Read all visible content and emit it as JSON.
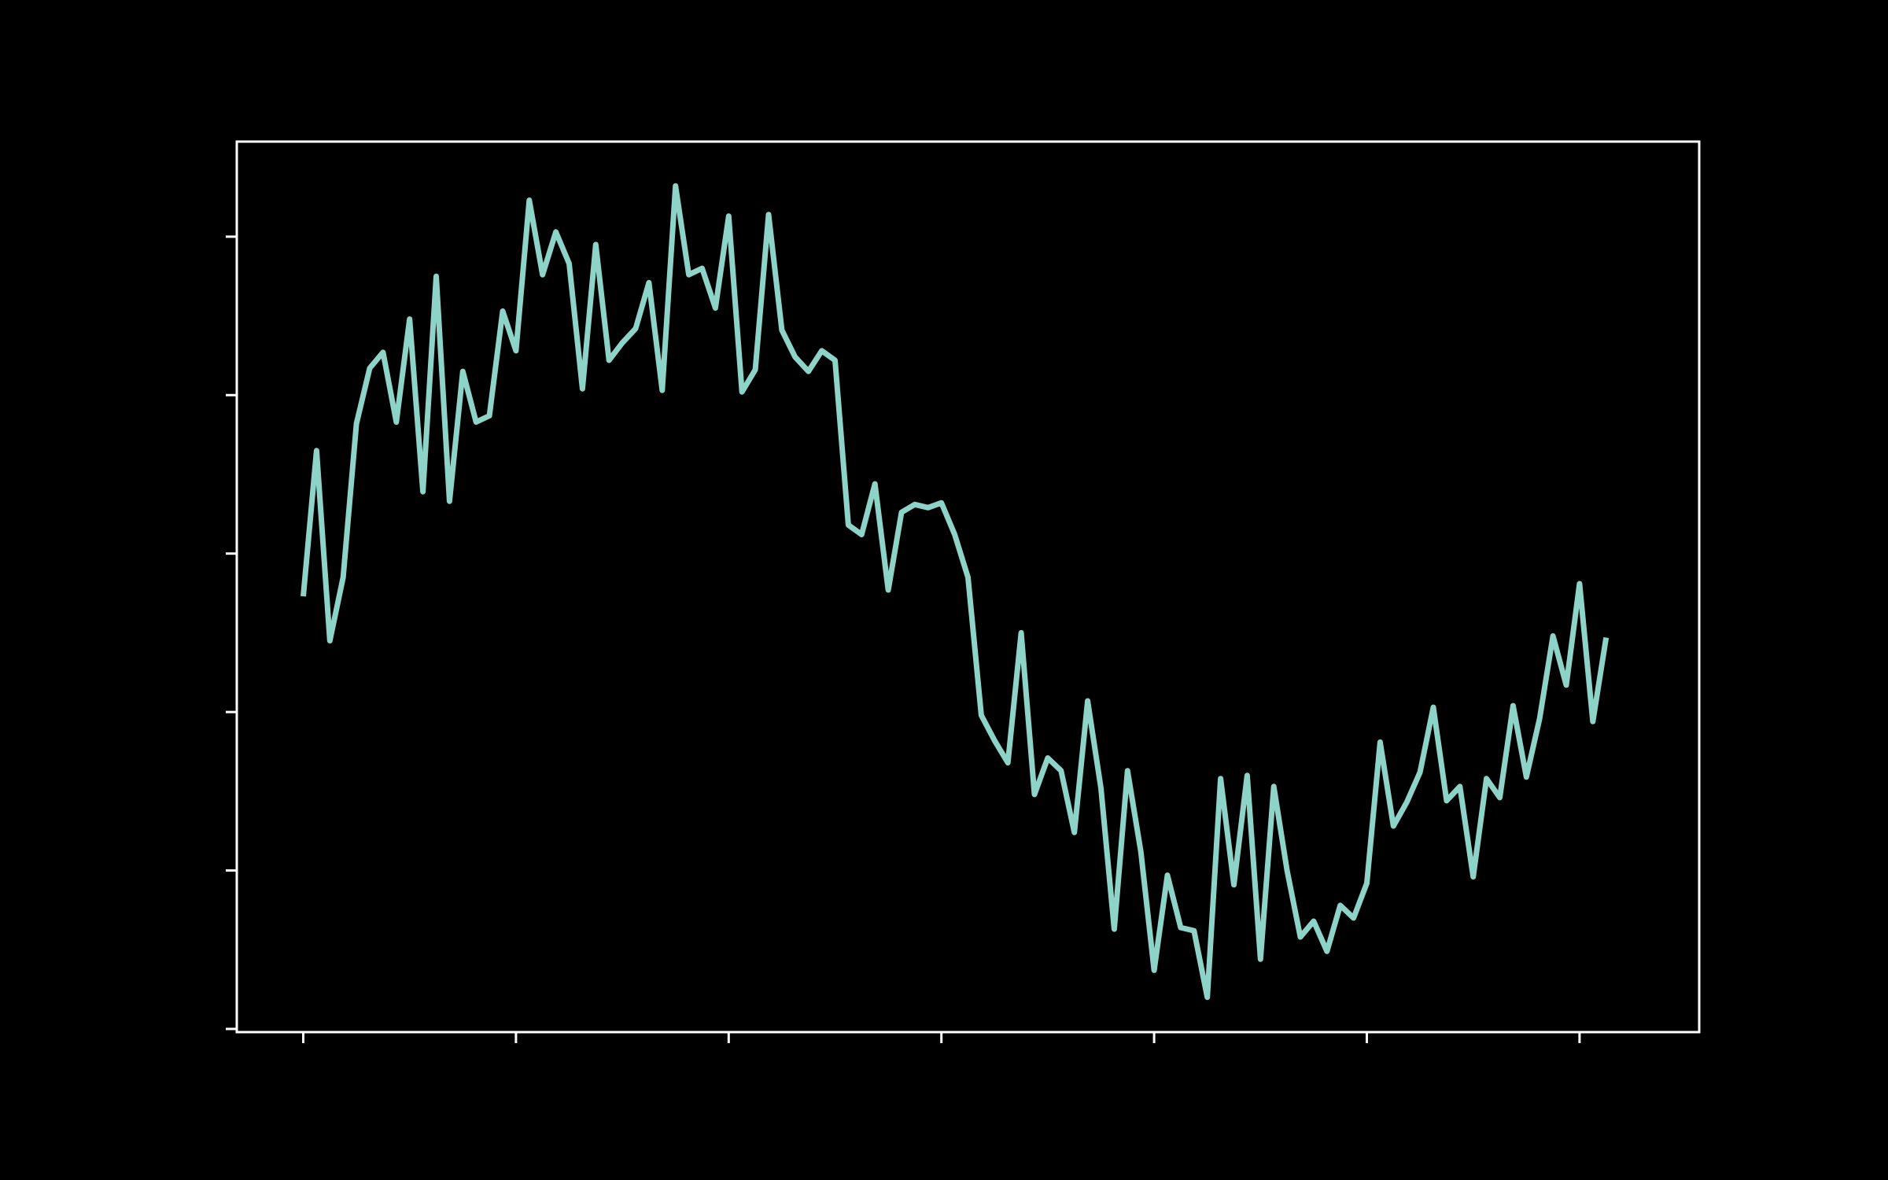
{
  "chart_data": {
    "type": "line",
    "title": "",
    "xlabel": "",
    "ylabel": "",
    "xlim": [
      -5,
      105
    ],
    "ylim": [
      -3.02,
      2.6
    ],
    "x_ticks": [
      0,
      16,
      32,
      48,
      64,
      80,
      96
    ],
    "y_ticks": [
      -3,
      -2,
      -1,
      0,
      1,
      2
    ],
    "grid": false,
    "legend": "none",
    "colors": {
      "background": "#000000",
      "axes": "#ffffff",
      "line": "#8dd3c7"
    },
    "series": [
      {
        "values": [
          -0.27,
          0.65,
          -0.55,
          -0.15,
          0.82,
          1.17,
          1.27,
          0.83,
          1.48,
          0.39,
          1.75,
          0.33,
          1.15,
          0.83,
          0.87,
          1.53,
          1.28,
          2.23,
          1.76,
          2.03,
          1.83,
          1.04,
          1.95,
          1.22,
          1.33,
          1.42,
          1.71,
          1.03,
          2.32,
          1.76,
          1.8,
          1.55,
          2.13,
          1.02,
          1.16,
          2.14,
          1.41,
          1.24,
          1.15,
          1.28,
          1.22,
          0.18,
          0.12,
          0.44,
          -0.23,
          0.26,
          0.31,
          0.29,
          0.32,
          0.12,
          -0.15,
          -1.02,
          -1.18,
          -1.32,
          -0.5,
          -1.52,
          -1.29,
          -1.37,
          -1.76,
          -0.93,
          -1.48,
          -2.37,
          -1.37,
          -1.88,
          -2.63,
          -2.03,
          -2.36,
          -2.38,
          -2.8,
          -1.42,
          -2.09,
          -1.4,
          -2.56,
          -1.47,
          -2.0,
          -2.42,
          -2.32,
          -2.51,
          -2.22,
          -2.3,
          -2.08,
          -1.19,
          -1.72,
          -1.57,
          -1.38,
          -0.97,
          -1.56,
          -1.47,
          -2.04,
          -1.42,
          -1.54,
          -0.96,
          -1.41,
          -1.04,
          -0.52,
          -0.83,
          -0.19,
          -1.06,
          -0.53
        ]
      }
    ]
  }
}
